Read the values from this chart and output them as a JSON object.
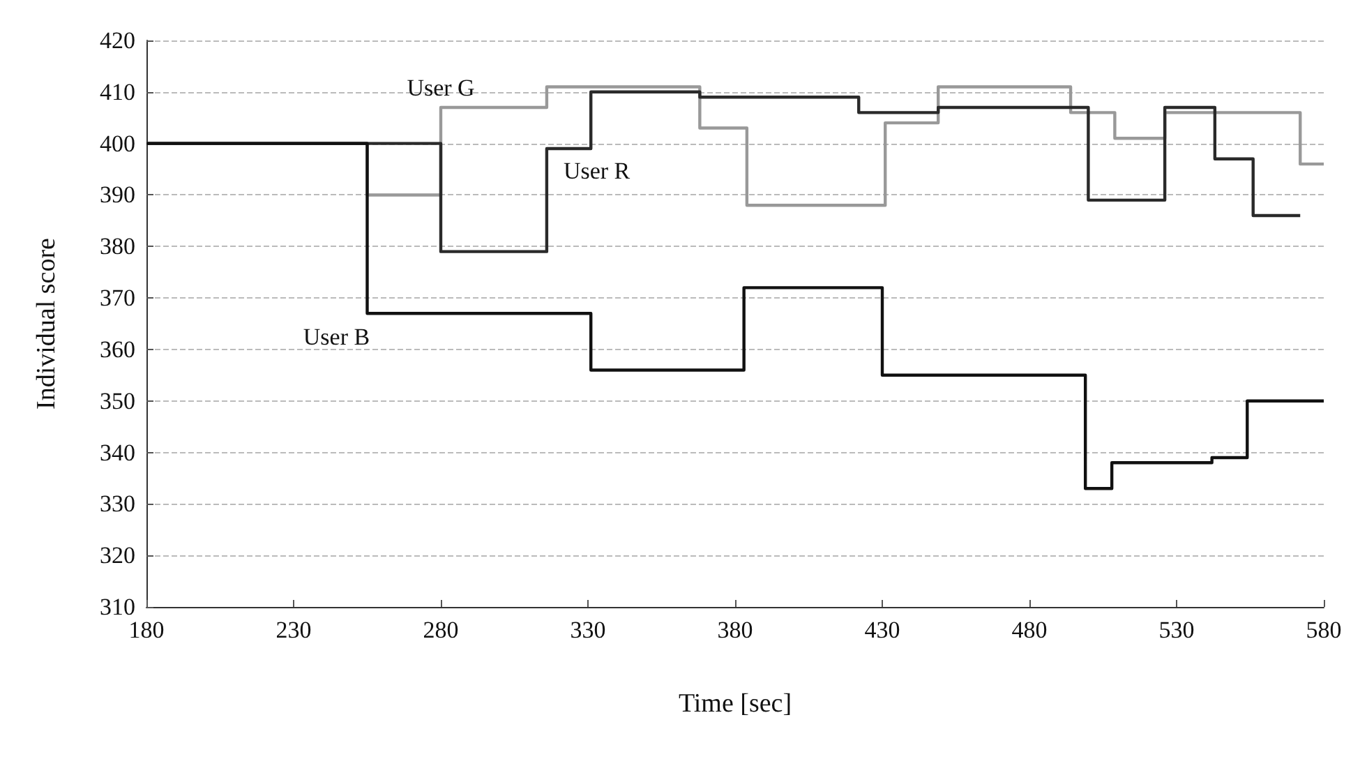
{
  "chart_data": {
    "type": "step",
    "xlabel": "Time [sec]",
    "ylabel": "Individual score",
    "xlim": [
      180,
      580
    ],
    "xticks": [
      180,
      230,
      280,
      330,
      380,
      430,
      480,
      530,
      580
    ],
    "ylim": [
      310,
      420
    ],
    "yticks": [
      310,
      320,
      330,
      340,
      350,
      360,
      370,
      380,
      390,
      400,
      410,
      420
    ],
    "grid": "y",
    "marker": "none",
    "line_style": "solid",
    "series": [
      {
        "name": "User G",
        "color": "#999999",
        "x": [
          180,
          255,
          280,
          316,
          368,
          384,
          431,
          449,
          494,
          509,
          526,
          572,
          580
        ],
        "values": [
          400,
          390,
          407,
          411,
          403,
          388,
          404,
          411,
          406,
          401,
          406,
          396,
          396
        ]
      },
      {
        "name": "User R",
        "color": "#2a2a2a",
        "x": [
          180,
          280,
          316,
          331,
          368,
          422,
          449,
          500,
          526,
          543,
          556,
          572
        ],
        "values": [
          400,
          379,
          399,
          410,
          409,
          406,
          407,
          389,
          407,
          397,
          386,
          386
        ]
      },
      {
        "name": "User B",
        "color": "#111111",
        "x": [
          180,
          255,
          331,
          383,
          430,
          499,
          508,
          542,
          554,
          580
        ],
        "values": [
          400,
          367,
          356,
          372,
          355,
          333,
          338,
          339,
          350,
          350
        ]
      }
    ]
  }
}
